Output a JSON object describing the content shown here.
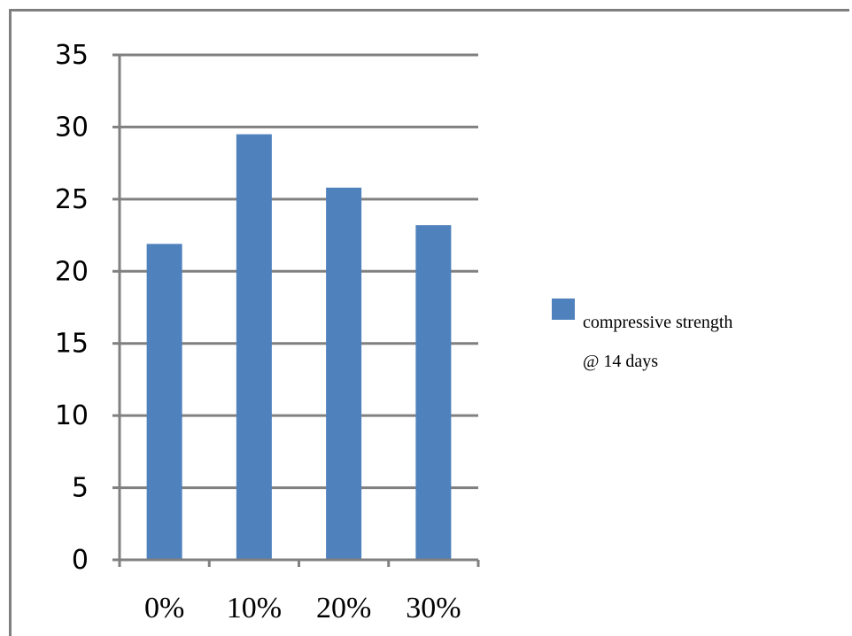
{
  "chart_data": {
    "type": "bar",
    "categories": [
      "0%",
      "10%",
      "20%",
      "30%"
    ],
    "series": [
      {
        "name": "compressive strength @ 14 days",
        "name_lines": [
          "compressive strength",
          "@ 14 days"
        ],
        "values": [
          21.9,
          29.5,
          25.8,
          23.2
        ]
      }
    ],
    "ylim": [
      0,
      35
    ],
    "yticks": [
      0,
      5,
      10,
      15,
      20,
      25,
      30,
      35
    ],
    "grid": true,
    "legend": "right",
    "bar_color": "#4f81bd"
  }
}
